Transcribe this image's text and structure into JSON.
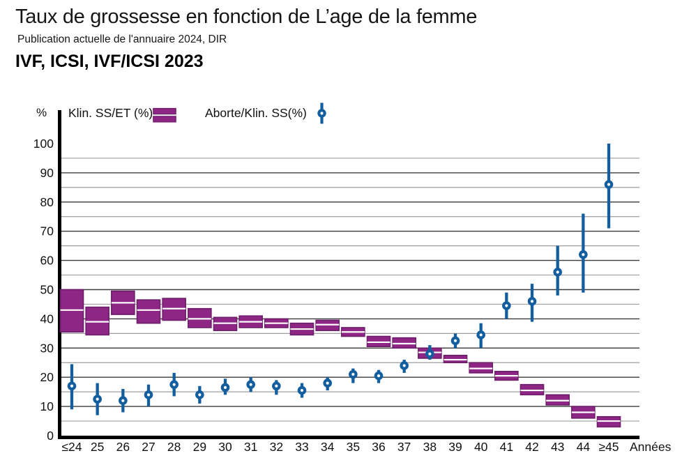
{
  "header": {
    "title": "Taux de grossesse en fonction de L’age de la femme",
    "subtitle": "Publication actuelle de l'annuaire 2024, DIR",
    "section_heading": "IVF, ICSI, IVF/ICSI 2023"
  },
  "legend": {
    "items": [
      {
        "label": "Klin. SS/ET (%)",
        "marker": "purple-double-bar"
      },
      {
        "label": "Aborte/Klin. SS(%)",
        "marker": "blue-point-errorbar"
      }
    ]
  },
  "colors": {
    "box_fill": "#8E2686",
    "box_border": "#6E1D6A",
    "box_center_line": "#ffffff",
    "errorbar_blue": "#135E9E",
    "grid_major": "#3a3a3a",
    "grid_minor": "#9e9e9e",
    "axis_black": "#000000",
    "text": "#111111"
  },
  "chart_data": {
    "type": "bar",
    "subtype": "floating-range-boxes with scatter error-bar points",
    "title": "Taux de grossesse en fonction de L’age de la femme",
    "subtitle": "Publication actuelle de l'annuaire 2024, DIR",
    "section_heading": "IVF, ICSI, IVF/ICSI 2023",
    "xlabel": "Années",
    "ylabel": "%",
    "ylim": [
      0,
      100
    ],
    "y_major_ticks": [
      0,
      10,
      20,
      30,
      40,
      50,
      60,
      70,
      80,
      90,
      100
    ],
    "y_minor_grid_step": 5,
    "grid": "horizontal; dark lines every 10, light lines every 5, none at 100",
    "legend_position": "top-left above plot",
    "categories": [
      "≤24",
      "25",
      "26",
      "27",
      "28",
      "29",
      "30",
      "31",
      "32",
      "33",
      "34",
      "35",
      "36",
      "37",
      "38",
      "39",
      "40",
      "41",
      "42",
      "43",
      "44",
      "≥45"
    ],
    "series": [
      {
        "name": "Klin. SS/ET (%)",
        "type": "floating-bar",
        "color": "#8E2686",
        "values": [
          {
            "low": 35.5,
            "mid": 43,
            "high": 50
          },
          {
            "low": 34.5,
            "mid": 39,
            "high": 44
          },
          {
            "low": 41.5,
            "mid": 45.5,
            "high": 49.5
          },
          {
            "low": 38.5,
            "mid": 43,
            "high": 46.5
          },
          {
            "low": 39.5,
            "mid": 43.5,
            "high": 47
          },
          {
            "low": 37,
            "mid": 40,
            "high": 43.5
          },
          {
            "low": 36,
            "mid": 38.5,
            "high": 40.5
          },
          {
            "low": 37,
            "mid": 39,
            "high": 41
          },
          {
            "low": 37,
            "mid": 38.5,
            "high": 40
          },
          {
            "low": 34.5,
            "mid": 36.5,
            "high": 38.5
          },
          {
            "low": 36,
            "mid": 38,
            "high": 39.5
          },
          {
            "low": 34,
            "mid": 35.5,
            "high": 37
          },
          {
            "low": 30.5,
            "mid": 32,
            "high": 34
          },
          {
            "low": 30,
            "mid": 31.5,
            "high": 33.5
          },
          {
            "low": 26.5,
            "mid": 28.5,
            "high": 30
          },
          {
            "low": 25,
            "mid": 26,
            "high": 27.5
          },
          {
            "low": 21.5,
            "mid": 23,
            "high": 25
          },
          {
            "low": 19,
            "mid": 20.5,
            "high": 22
          },
          {
            "low": 14,
            "mid": 15.5,
            "high": 17.5
          },
          {
            "low": 10.5,
            "mid": 12,
            "high": 14
          },
          {
            "low": 6,
            "mid": 8,
            "high": 10
          },
          {
            "low": 3,
            "mid": 5,
            "high": 6.5
          }
        ]
      },
      {
        "name": "Aborte/Klin. SS(%)",
        "type": "scatter-errorbar",
        "color": "#135E9E",
        "values": [
          {
            "low": 9,
            "value": 17,
            "high": 24.5
          },
          {
            "low": 7,
            "value": 12.5,
            "high": 18
          },
          {
            "low": 8,
            "value": 12,
            "high": 16
          },
          {
            "low": 10,
            "value": 14,
            "high": 17.5
          },
          {
            "low": 13.5,
            "value": 17.5,
            "high": 21.5
          },
          {
            "low": 11,
            "value": 14,
            "high": 17
          },
          {
            "low": 14,
            "value": 16.5,
            "high": 19.5
          },
          {
            "low": 15,
            "value": 17.5,
            "high": 20
          },
          {
            "low": 14,
            "value": 17,
            "high": 19
          },
          {
            "low": 13,
            "value": 15.5,
            "high": 18
          },
          {
            "low": 15.5,
            "value": 18,
            "high": 20
          },
          {
            "low": 18,
            "value": 21,
            "high": 23
          },
          {
            "low": 18,
            "value": 20.5,
            "high": 22.5
          },
          {
            "low": 21.5,
            "value": 24,
            "high": 26
          },
          {
            "low": 26,
            "value": 28,
            "high": 31
          },
          {
            "low": 30,
            "value": 32.5,
            "high": 35
          },
          {
            "low": 30,
            "value": 34.5,
            "high": 38.5
          },
          {
            "low": 40,
            "value": 44.5,
            "high": 49
          },
          {
            "low": 39,
            "value": 46,
            "high": 52
          },
          {
            "low": 48,
            "value": 56,
            "high": 65
          },
          {
            "low": 49,
            "value": 62,
            "high": 76
          },
          {
            "low": 71,
            "value": 86,
            "high": 100
          }
        ]
      }
    ]
  }
}
